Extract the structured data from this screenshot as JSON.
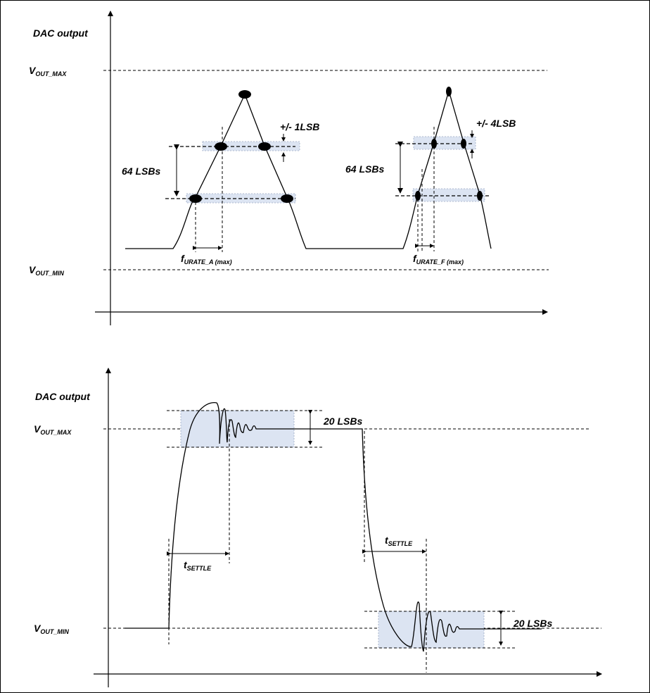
{
  "top": {
    "y_axis_label": "DAC output",
    "vout_max": {
      "main": "V",
      "sub": "OUT_MAX"
    },
    "vout_min": {
      "main": "V",
      "sub": "OUT_MIN"
    },
    "lsb_span_left": "64 LSBs",
    "lsb_span_right": "64 LSBs",
    "tol_left": "+/- 1LSB",
    "tol_right": "+/- 4LSB",
    "rate_left": {
      "main": "f",
      "sub": "URATE_A (max)"
    },
    "rate_right": {
      "main": "f",
      "sub": "URATE_F (max)"
    }
  },
  "bottom": {
    "y_axis_label": "DAC output",
    "vout_max": {
      "main": "V",
      "sub": "OUT_MAX"
    },
    "vout_min": {
      "main": "V",
      "sub": "OUT_MIN"
    },
    "band_top": "20 LSBs",
    "band_bottom": "20 LSBs",
    "settle_left": {
      "main": "t",
      "sub": "SETTLE"
    },
    "settle_right": {
      "main": "t",
      "sub": "SETTLE"
    }
  },
  "colors": {
    "band_fill": "#dce4f2",
    "line": "#000000"
  }
}
